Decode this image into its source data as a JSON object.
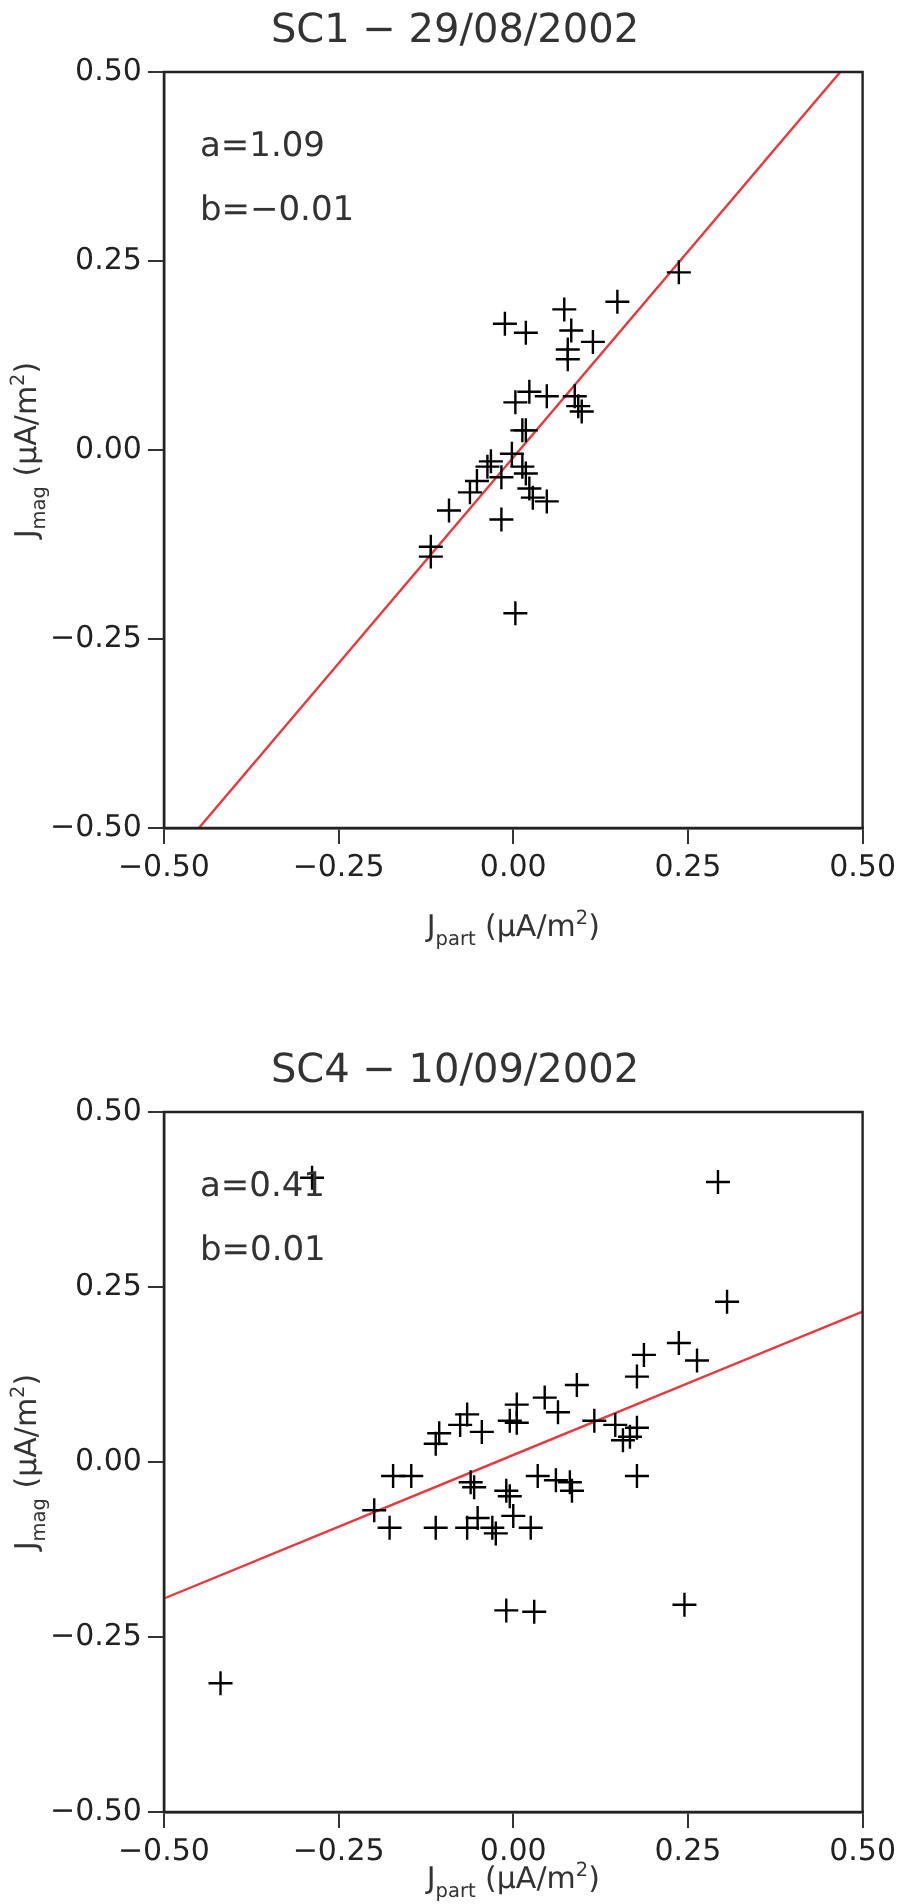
{
  "chart_data": [
    {
      "type": "scatter",
      "title": "SC1 − 29/08/2002",
      "xlabel": "J$_{part}$ (μA/m$^{2}$)",
      "ylabel": "J$_{mag}$ (μA/m$^{2}$)",
      "annotations": [
        "a=1.09",
        "b=−0.01"
      ],
      "xlim": [
        -0.5,
        0.5
      ],
      "ylim": [
        -0.5,
        0.5
      ],
      "xticks": [
        {
          "value": -0.5,
          "label": "−0.50"
        },
        {
          "value": -0.25,
          "label": "−0.25"
        },
        {
          "value": 0,
          "label": "0.00"
        },
        {
          "value": 0.25,
          "label": "0.25"
        },
        {
          "value": 0.5,
          "label": "0.50"
        }
      ],
      "yticks": [
        {
          "value": -0.5,
          "label": "−0.50"
        },
        {
          "value": -0.25,
          "label": "−0.25"
        },
        {
          "value": 0,
          "label": "0.00"
        },
        {
          "value": 0.25,
          "label": "0.25"
        },
        {
          "value": 0.5,
          "label": "0.50"
        }
      ],
      "grid": false,
      "legend": false,
      "marker": "cross",
      "series": [
        {
          "color": "#000000",
          "x": [
            0.237,
            0.149,
            0.073,
            -0.012,
            0.018,
            0.083,
            0.114,
            0.078,
            0.078,
            0.048,
            0.023,
            0.003,
            0.088,
            0.093,
            0.098,
            0.013,
            0.018,
            -0.002,
            -0.032,
            -0.037,
            0.013,
            0.018,
            -0.052,
            -0.017,
            0.023,
            -0.062,
            0.028,
            0.048,
            -0.092,
            -0.017,
            -0.118,
            -0.118,
            0.003
          ],
          "values": [
            0.235,
            0.196,
            0.186,
            0.167,
            0.155,
            0.158,
            0.143,
            0.133,
            0.12,
            0.071,
            0.077,
            0.063,
            0.071,
            0.058,
            0.051,
            0.026,
            0.026,
            -0.005,
            -0.015,
            -0.022,
            -0.022,
            -0.031,
            -0.041,
            -0.036,
            -0.051,
            -0.056,
            -0.063,
            -0.068,
            -0.08,
            -0.092,
            -0.128,
            -0.141,
            -0.216
          ]
        },
        {
          "type": "line",
          "color": "#e8383d",
          "marker": "none",
          "x": [
            -0.45,
            0.468
          ],
          "values": [
            -0.5,
            0.5
          ]
        }
      ]
    },
    {
      "type": "scatter",
      "title": "SC4 − 10/09/2002",
      "xlabel": "J$_{part}$ (μA/m$^{2}$)",
      "ylabel": "J$_{mag}$ (μA/m$^{2}$)",
      "annotations": [
        "a=0.41",
        "b=0.01"
      ],
      "xlim": [
        -0.5,
        0.5
      ],
      "ylim": [
        -0.5,
        0.5
      ],
      "xticks": [
        {
          "value": -0.5,
          "label": "−0.50"
        },
        {
          "value": -0.25,
          "label": "−0.25"
        },
        {
          "value": 0,
          "label": "0.00"
        },
        {
          "value": 0.25,
          "label": "0.25"
        },
        {
          "value": 0.5,
          "label": "0.50"
        }
      ],
      "yticks": [
        {
          "value": -0.5,
          "label": "−0.50"
        },
        {
          "value": -0.25,
          "label": "−0.25"
        },
        {
          "value": 0,
          "label": "0.00"
        },
        {
          "value": 0.25,
          "label": "0.25"
        },
        {
          "value": 0.5,
          "label": "0.50"
        }
      ],
      "grid": false,
      "legend": false,
      "marker": "cross",
      "series": [
        {
          "color": "#000000",
          "x": [
            -0.288,
            0.293,
            0.306,
            0.237,
            0.263,
            0.187,
            0.177,
            0.091,
            0.045,
            0.064,
            0.005,
            0.005,
            -0.005,
            -0.066,
            -0.076,
            -0.045,
            -0.106,
            -0.111,
            0.116,
            0.146,
            0.162,
            0.167,
            0.157,
            0.177,
            0.177,
            -0.172,
            -0.146,
            -0.061,
            -0.056,
            -0.01,
            -0.005,
            0.035,
            0.061,
            0.081,
            0.084,
            -0.199,
            -0.177,
            -0.111,
            -0.066,
            -0.051,
            -0.03,
            -0.025,
            0.0,
            0.025,
            -0.01,
            0.03,
            0.245,
            -0.419
          ],
          "values": [
            0.406,
            0.4,
            0.229,
            0.17,
            0.145,
            0.153,
            0.122,
            0.11,
            0.092,
            0.071,
            0.082,
            0.056,
            0.059,
            0.068,
            0.053,
            0.043,
            0.041,
            0.026,
            0.059,
            0.053,
            null,
            0.036,
            0.031,
            0.049,
            -0.02,
            -0.02,
            -0.02,
            -0.029,
            -0.036,
            -0.041,
            -0.049,
            -0.02,
            -0.026,
            -0.029,
            -0.041,
            -0.069,
            -0.094,
            -0.094,
            -0.094,
            -0.08,
            -0.094,
            -0.102,
            -0.077,
            -0.094,
            -0.212,
            -0.214,
            -0.204,
            -0.316
          ]
        },
        {
          "type": "line",
          "color": "#e8383d",
          "marker": "none",
          "x": [
            -0.5,
            0.5
          ],
          "values": [
            -0.195,
            0.215
          ]
        }
      ]
    }
  ]
}
